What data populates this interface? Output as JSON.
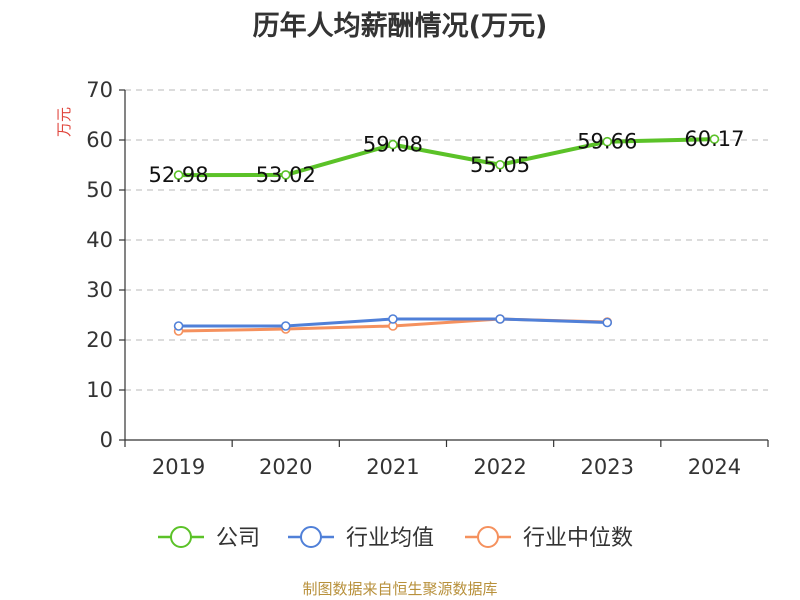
{
  "chart_data": {
    "type": "line",
    "title": "历年人均薪酬情况(万元)",
    "ylabel": "万元",
    "xlabel": "",
    "categories": [
      "2019",
      "2020",
      "2021",
      "2022",
      "2023",
      "2024"
    ],
    "ylim": [
      0,
      70
    ],
    "yticks": [
      0,
      10,
      20,
      30,
      40,
      50,
      60,
      70
    ],
    "grid": true,
    "legend_position": "bottom",
    "series": [
      {
        "name": "公司",
        "color": "#5bc228",
        "values": [
          52.98,
          53.02,
          59.08,
          55.05,
          59.66,
          60.17
        ],
        "labels": [
          "52.98",
          "53.02",
          "59.08",
          "55.05",
          "59.66",
          "60.17"
        ]
      },
      {
        "name": "行业均值",
        "color": "#5080d8",
        "values": [
          22.8,
          22.8,
          24.2,
          24.2,
          23.5,
          null
        ]
      },
      {
        "name": "行业中位数",
        "color": "#f5915e",
        "values": [
          21.8,
          22.2,
          22.8,
          24.2,
          23.6,
          null
        ]
      }
    ]
  },
  "source_text": "制图数据来自恒生聚源数据库"
}
